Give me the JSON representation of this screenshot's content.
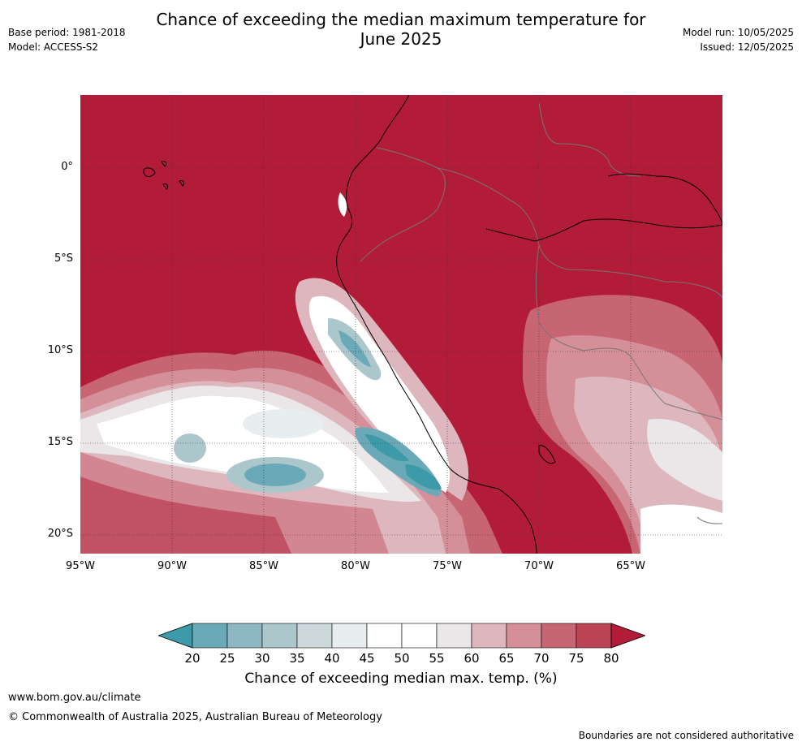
{
  "header": {
    "title_line1": "Chance of exceeding the median maximum temperature for",
    "title_line2": "June 2025",
    "base_period": "Base period: 1981-2018",
    "model": "Model: ACCESS-S2",
    "model_run": "Model run: 10/05/2025",
    "issued": "Issued: 12/05/2025"
  },
  "map": {
    "lat_ticks": [
      "0°",
      "5°S",
      "10°S",
      "15°S",
      "20°S"
    ],
    "lon_ticks": [
      "95°W",
      "90°W",
      "85°W",
      "80°W",
      "75°W",
      "70°W",
      "65°W"
    ],
    "background_color": "#b21c38"
  },
  "legend": {
    "title": "Chance of exceeding median max. temp. (%)",
    "labels": [
      "20",
      "25",
      "30",
      "35",
      "40",
      "45",
      "50",
      "55",
      "60",
      "65",
      "70",
      "75",
      "80"
    ],
    "colors": [
      "#3d9aa8",
      "#6aa9b7",
      "#8db7c2",
      "#abc7cc",
      "#ccd8da",
      "#e8eef0",
      "#ffffff",
      "#ffffff",
      "#ebe6e8",
      "#deb6bd",
      "#d58f98",
      "#c86573",
      "#bc4555",
      "#b21c38"
    ]
  },
  "footer": {
    "url": "www.bom.gov.au/climate",
    "copyright": "© Commonwealth of Australia 2025, Australian Bureau of Meteorology",
    "boundaries_note": "Boundaries are not considered authoritative"
  }
}
